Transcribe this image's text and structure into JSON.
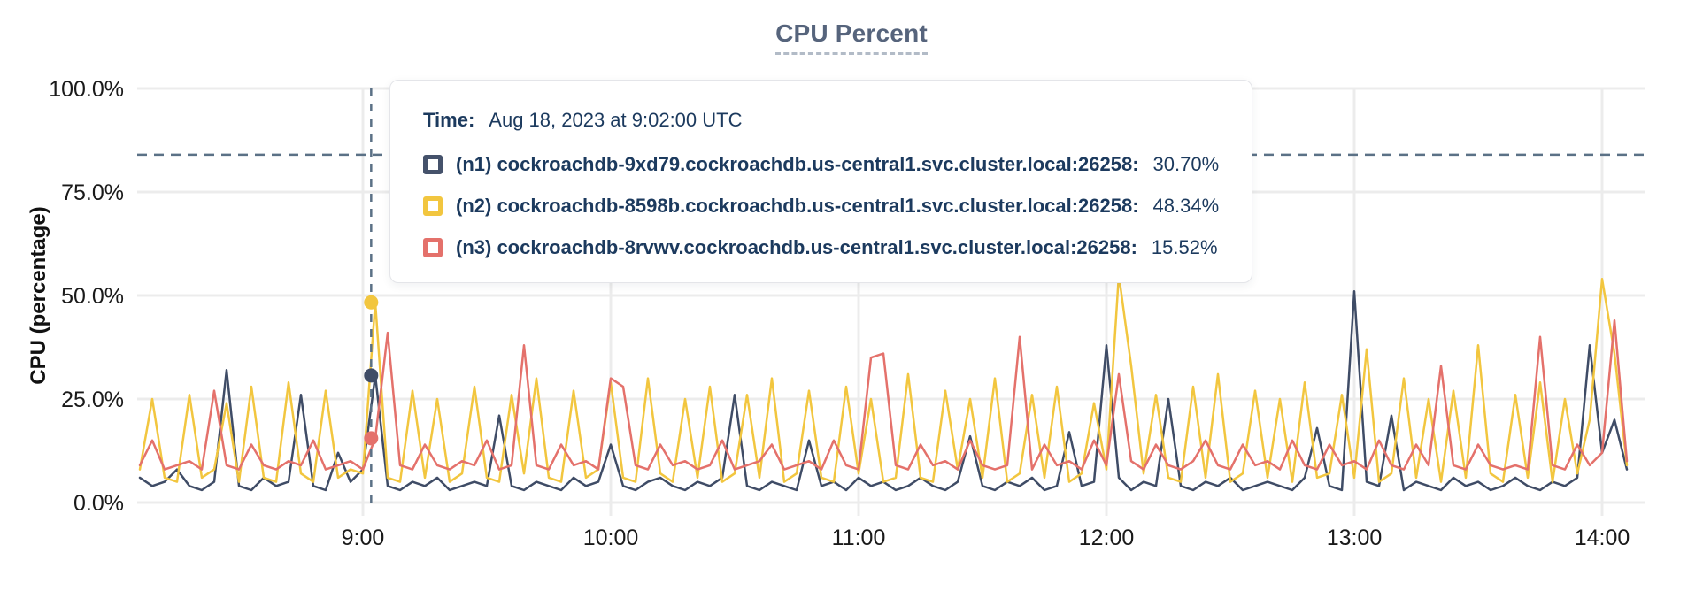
{
  "title": "CPU Percent",
  "y_axis_label": "CPU (percentage)",
  "tooltip": {
    "time_label": "Time:",
    "time_value": "Aug 18, 2023 at 9:02:00 UTC",
    "rows": [
      {
        "label": "(n1) cockroachdb-9xd79.cockroachdb.us-central1.svc.cluster.local:26258:",
        "value": "30.70%",
        "color": "#45526b"
      },
      {
        "label": "(n2) cockroachdb-8598b.cockroachdb.us-central1.svc.cluster.local:26258:",
        "value": "48.34%",
        "color": "#f2c63f"
      },
      {
        "label": "(n3) cockroachdb-8rvwv.cockroachdb.us-central1.svc.cluster.local:26258:",
        "value": "15.52%",
        "color": "#e4716b"
      }
    ]
  },
  "colors": {
    "title": "#56647c",
    "tooltip_text": "#1c3a5e",
    "grid": "#ececec",
    "dashed_guides": "#5b7186",
    "series_n1": "#3f4c66",
    "series_n2": "#f2c63f",
    "series_n3": "#e4716b"
  },
  "chart_data": {
    "type": "line",
    "title": "CPU Percent",
    "xlabel": "",
    "ylabel": "CPU (percentage)",
    "ylim": [
      0,
      100
    ],
    "grid": true,
    "y_ticks": [
      "0.0%",
      "25.0%",
      "50.0%",
      "75.0%",
      "100.0%"
    ],
    "y_tick_vals": [
      0,
      25,
      50,
      75,
      100
    ],
    "x_ticks": [
      "9:00",
      "10:00",
      "11:00",
      "12:00",
      "13:00",
      "14:00"
    ],
    "x_tick_min": [
      0,
      60,
      120,
      180,
      240,
      300
    ],
    "x_start_min": -54,
    "step_min": 3,
    "threshold_pct": 84,
    "hover": {
      "time_label": "9:02",
      "time_min": 2,
      "values": [
        30.7,
        48.34,
        15.52
      ]
    },
    "series": [
      {
        "name": "(n1) cockroachdb-9xd79.cockroachdb.us-central1.svc.cluster.local:26258",
        "color": "#3f4c66",
        "values": [
          6,
          4,
          5,
          8,
          4,
          3,
          5,
          32,
          4,
          3,
          6,
          4,
          5,
          26,
          4,
          3,
          12,
          5,
          8,
          30.7,
          4,
          3,
          5,
          4,
          6,
          3,
          4,
          5,
          4,
          21,
          4,
          3,
          5,
          4,
          3,
          6,
          4,
          5,
          14,
          4,
          3,
          5,
          6,
          4,
          3,
          5,
          4,
          6,
          26,
          4,
          3,
          5,
          4,
          3,
          15,
          4,
          5,
          3,
          6,
          4,
          5,
          3,
          4,
          6,
          4,
          3,
          5,
          16,
          4,
          3,
          5,
          4,
          6,
          3,
          4,
          17,
          4,
          5,
          38,
          6,
          3,
          5,
          4,
          25,
          4,
          3,
          5,
          4,
          6,
          3,
          4,
          5,
          4,
          3,
          6,
          18,
          4,
          3,
          51,
          5,
          4,
          21,
          3,
          5,
          4,
          3,
          6,
          4,
          5,
          3,
          4,
          6,
          4,
          3,
          5,
          4,
          6,
          38,
          12,
          20,
          8
        ]
      },
      {
        "name": "(n2) cockroachdb-8598b.cockroachdb.us-central1.svc.cluster.local:26258",
        "color": "#f2c63f",
        "values": [
          8,
          25,
          6,
          5,
          26,
          6,
          8,
          24,
          5,
          28,
          6,
          5,
          29,
          7,
          5,
          27,
          6,
          8,
          7,
          48.34,
          6,
          5,
          27,
          6,
          25,
          5,
          7,
          28,
          6,
          5,
          26,
          7,
          30,
          6,
          5,
          27,
          6,
          8,
          29,
          6,
          5,
          30,
          7,
          5,
          25,
          6,
          28,
          5,
          7,
          26,
          6,
          30,
          5,
          7,
          27,
          6,
          5,
          28,
          7,
          25,
          5,
          6,
          31,
          6,
          5,
          27,
          8,
          25,
          6,
          30,
          5,
          7,
          26,
          6,
          28,
          5,
          7,
          24,
          8,
          55,
          33,
          7,
          26,
          6,
          5,
          28,
          6,
          31,
          5,
          7,
          27,
          6,
          25,
          5,
          29,
          6,
          7,
          26,
          6,
          37,
          5,
          7,
          30,
          6,
          25,
          5,
          27,
          6,
          38,
          7,
          5,
          26,
          6,
          29,
          5,
          25,
          7,
          20,
          54,
          36,
          9
        ]
      },
      {
        "name": "(n3) cockroachdb-8rvwv.cockroachdb.us-central1.svc.cluster.local:26258",
        "color": "#e4716b",
        "values": [
          9,
          15,
          8,
          9,
          10,
          8,
          27,
          9,
          8,
          14,
          9,
          8,
          10,
          9,
          15,
          8,
          9,
          10,
          8,
          15.52,
          41,
          9,
          8,
          14,
          9,
          8,
          10,
          9,
          15,
          8,
          9,
          38,
          9,
          8,
          14,
          9,
          10,
          8,
          30,
          28,
          9,
          8,
          14,
          9,
          10,
          8,
          9,
          15,
          8,
          9,
          10,
          14,
          8,
          9,
          10,
          8,
          15,
          9,
          8,
          35,
          36,
          9,
          8,
          14,
          9,
          10,
          8,
          15,
          9,
          8,
          9,
          40,
          8,
          14,
          9,
          10,
          8,
          15,
          9,
          31,
          10,
          8,
          14,
          9,
          8,
          10,
          15,
          9,
          8,
          14,
          9,
          10,
          8,
          15,
          9,
          8,
          14,
          9,
          10,
          8,
          15,
          9,
          8,
          14,
          9,
          33,
          9,
          8,
          14,
          9,
          8,
          9,
          8,
          40,
          9,
          8,
          14,
          9,
          12,
          44,
          10
        ]
      }
    ]
  }
}
